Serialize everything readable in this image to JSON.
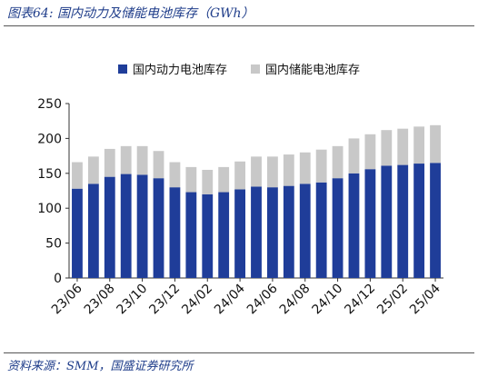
{
  "title": "图表64:  国内动力及储能电池库存（GWh）",
  "source": "资料来源：SMM，国盛证券研究所",
  "chart_data": {
    "type": "bar",
    "stacked": true,
    "title": "",
    "xlabel": "",
    "ylabel": "",
    "ylim": [
      0,
      250
    ],
    "yticks": [
      0,
      50,
      100,
      150,
      200,
      250
    ],
    "legend_position": "top",
    "categories": [
      "23/06",
      "23/07",
      "23/08",
      "23/09",
      "23/10",
      "23/11",
      "23/12",
      "24/01",
      "24/02",
      "24/03",
      "24/04",
      "24/05",
      "24/06",
      "24/07",
      "24/08",
      "24/09",
      "24/10",
      "24/11",
      "24/12",
      "25/01",
      "25/02",
      "25/03",
      "25/04"
    ],
    "x_tick_labels": [
      "23/06",
      "23/08",
      "23/10",
      "23/12",
      "24/02",
      "24/04",
      "24/06",
      "24/08",
      "24/10",
      "24/12",
      "25/02",
      "25/04"
    ],
    "series": [
      {
        "name": "国内动力电池库存",
        "color": "#1f3d99",
        "values": [
          128,
          135,
          145,
          149,
          148,
          143,
          130,
          123,
          120,
          123,
          127,
          131,
          130,
          132,
          135,
          137,
          143,
          150,
          156,
          161,
          162,
          164,
          165
        ]
      },
      {
        "name": "国内储能电池库存",
        "color": "#c8c8c8",
        "values": [
          38,
          39,
          40,
          40,
          41,
          39,
          36,
          36,
          35,
          36,
          40,
          43,
          44,
          45,
          45,
          47,
          46,
          50,
          50,
          51,
          52,
          53,
          54
        ]
      }
    ]
  }
}
